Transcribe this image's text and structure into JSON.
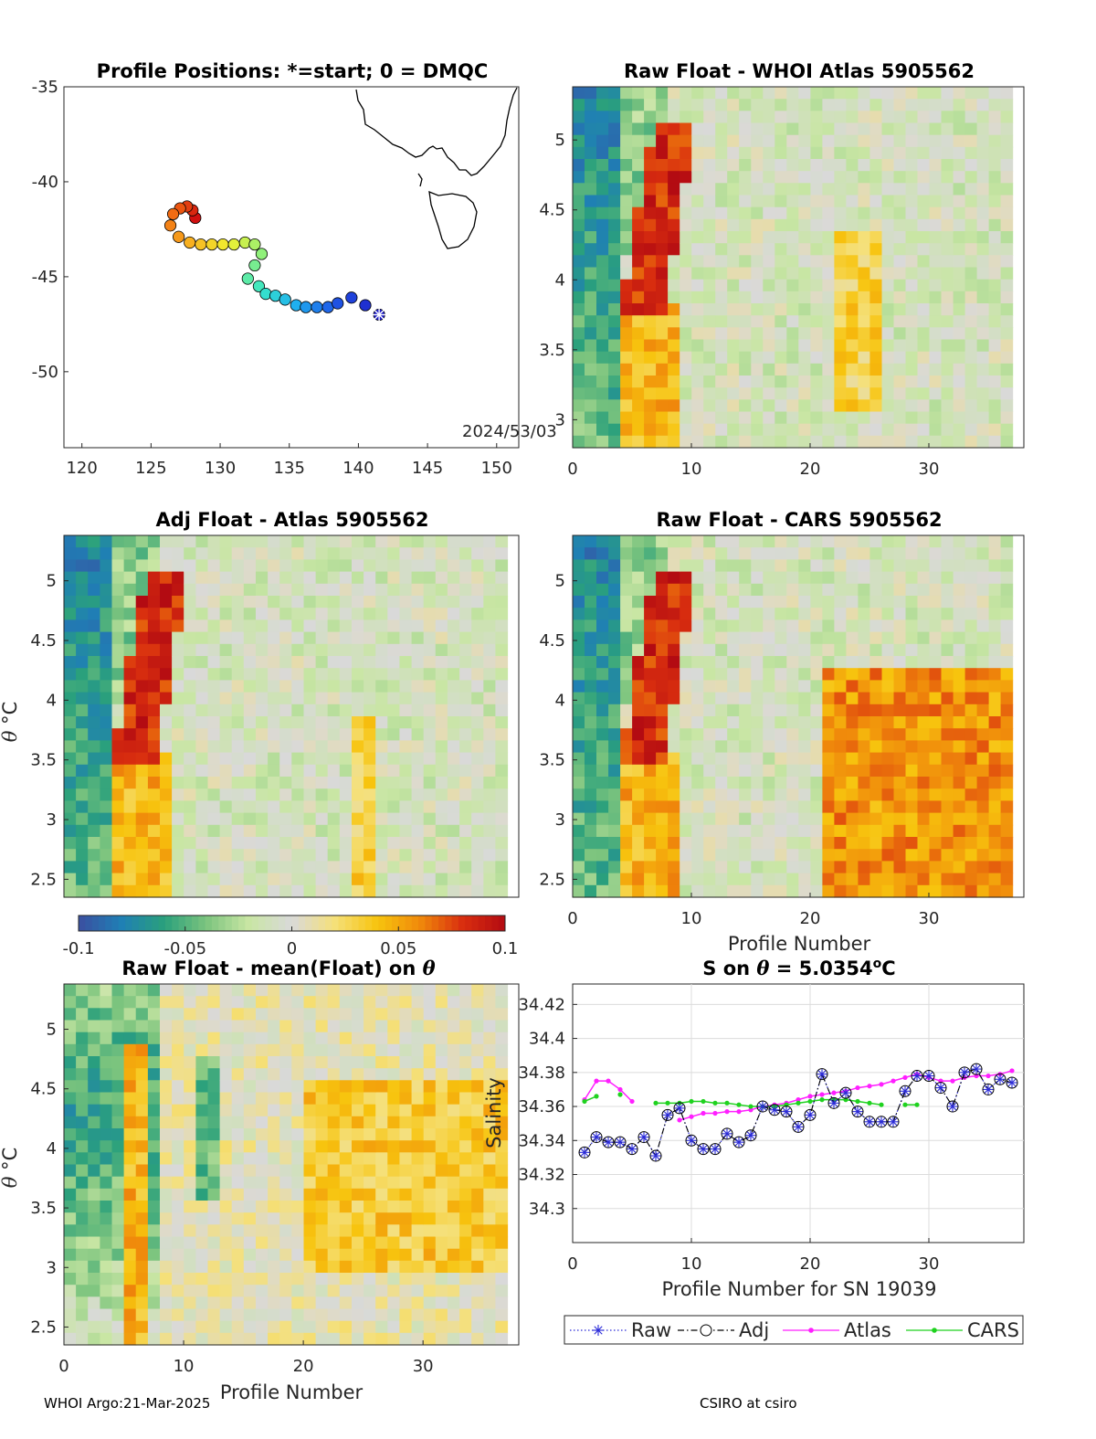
{
  "footer": {
    "left": "WHOI Argo:21-Mar-2025",
    "right": "CSIRO at csiro"
  },
  "colors": {
    "colormap": [
      "#3b4fa0",
      "#1f7fb5",
      "#2aa07c",
      "#7cc47e",
      "#c9e6a4",
      "#d9d9d9",
      "#f5e07a",
      "#f7c40e",
      "#f08a0b",
      "#d92e0f",
      "#b30b12"
    ],
    "raw": "#2b2bd8",
    "adj": "#000000",
    "atlas": "#ff1fff",
    "cars": "#1fd21f"
  },
  "chart_data": [
    {
      "id": "map",
      "type": "scatter",
      "title": "Profile Positions: *=start; 0 = DMQC",
      "xlim": [
        118.7,
        151.6
      ],
      "ylim": [
        -54,
        -35
      ],
      "xticks": [
        120,
        125,
        130,
        135,
        140,
        145,
        150
      ],
      "yticks": [
        -35,
        -40,
        -45,
        -50
      ],
      "annotation": "2024/53/03",
      "points": [
        [
          141.5,
          -47.0
        ],
        [
          140.5,
          -46.5
        ],
        [
          139.5,
          -46.1
        ],
        [
          138.5,
          -46.4
        ],
        [
          137.8,
          -46.6
        ],
        [
          137.0,
          -46.6
        ],
        [
          136.2,
          -46.6
        ],
        [
          135.5,
          -46.5
        ],
        [
          134.7,
          -46.2
        ],
        [
          134.0,
          -46.0
        ],
        [
          133.3,
          -45.9
        ],
        [
          132.8,
          -45.5
        ],
        [
          132.0,
          -45.1
        ],
        [
          132.5,
          -44.4
        ],
        [
          133.0,
          -43.8
        ],
        [
          132.5,
          -43.3
        ],
        [
          131.8,
          -43.2
        ],
        [
          131.0,
          -43.3
        ],
        [
          130.2,
          -43.3
        ],
        [
          129.4,
          -43.3
        ],
        [
          128.6,
          -43.3
        ],
        [
          127.8,
          -43.2
        ],
        [
          127.0,
          -42.9
        ],
        [
          126.4,
          -42.3
        ],
        [
          126.6,
          -41.7
        ],
        [
          127.1,
          -41.4
        ],
        [
          127.6,
          -41.3
        ],
        [
          128.0,
          -41.5
        ],
        [
          128.2,
          -41.9
        ]
      ]
    },
    {
      "id": "p2",
      "type": "heatmap",
      "title": "Raw Float - WHOI Atlas  5905562",
      "xlim": [
        0,
        38
      ],
      "ylim": [
        2.8,
        5.38
      ],
      "xticks": [
        0,
        10,
        20,
        30
      ],
      "yticks": [
        3,
        3.5,
        4,
        4.5,
        5
      ],
      "clim": [
        -0.1,
        0.1
      ]
    },
    {
      "id": "p3",
      "type": "heatmap",
      "title": "Adj Float - Atlas  5905562",
      "xlim": [
        0,
        38
      ],
      "ylim": [
        2.35,
        5.38
      ],
      "xticks": [],
      "yticks": [
        2.5,
        3,
        3.5,
        4,
        4.5,
        5
      ],
      "ylabel": "θ °C",
      "clim": [
        -0.1,
        0.1
      ],
      "colorbar": {
        "ticks": [
          "-0.1",
          "-0.05",
          "0",
          "0.05",
          "0.1"
        ]
      }
    },
    {
      "id": "p4",
      "type": "heatmap",
      "title": "Raw Float - CARS  5905562",
      "xlim": [
        0,
        38
      ],
      "ylim": [
        2.35,
        5.38
      ],
      "xticks": [
        0,
        10,
        20,
        30
      ],
      "yticks": [
        2.5,
        3,
        3.5,
        4,
        4.5,
        5
      ],
      "xlabel": "Profile Number",
      "clim": [
        -0.1,
        0.1
      ]
    },
    {
      "id": "p5",
      "type": "heatmap",
      "title": "Raw Float - mean(Float) on θ",
      "xlim": [
        0,
        38
      ],
      "ylim": [
        2.35,
        5.38
      ],
      "xticks": [
        0,
        10,
        20,
        30
      ],
      "yticks": [
        2.5,
        3,
        3.5,
        4,
        4.5,
        5
      ],
      "xlabel": "Profile Number",
      "ylabel": "θ °C",
      "clim": [
        -0.1,
        0.1
      ]
    },
    {
      "id": "salinity",
      "type": "line",
      "title": "S on θ = 5.0354°C",
      "xlabel": "Profile Number for SN 19039",
      "ylabel": "Salinity",
      "xlim": [
        0,
        38
      ],
      "ylim": [
        34.28,
        34.432
      ],
      "xticks": [
        0,
        10,
        20,
        30
      ],
      "yticks": [
        34.3,
        34.32,
        34.34,
        34.36,
        34.38,
        34.4,
        34.42
      ],
      "legend": [
        "Raw",
        "Adj",
        "Atlas",
        "CARS"
      ],
      "series": [
        {
          "name": "Raw",
          "x": [
            1,
            2,
            3,
            4,
            5,
            6,
            7,
            8,
            9,
            10,
            11,
            12,
            13,
            14,
            15,
            16,
            17,
            18,
            19,
            20,
            21,
            22,
            23,
            24,
            25,
            26,
            27,
            28,
            29,
            30,
            31,
            32,
            33,
            34,
            35,
            36,
            37
          ],
          "values": [
            34.333,
            34.342,
            34.339,
            34.339,
            34.335,
            34.342,
            34.331,
            34.355,
            34.359,
            34.34,
            34.335,
            34.335,
            34.344,
            34.339,
            34.343,
            34.36,
            34.358,
            34.357,
            34.348,
            34.355,
            34.379,
            34.362,
            34.368,
            34.357,
            34.351,
            34.351,
            34.351,
            34.369,
            34.378,
            34.378,
            34.371,
            34.36,
            34.38,
            34.382,
            34.37,
            34.376,
            34.374
          ]
        },
        {
          "name": "Adj",
          "x": [
            1,
            2,
            3,
            4,
            5,
            6,
            7,
            8,
            9,
            10,
            11,
            12,
            13,
            14,
            15,
            16,
            17,
            18,
            19,
            20,
            21,
            22,
            23,
            24,
            25,
            26,
            27,
            28,
            29,
            30,
            31,
            32,
            33,
            34,
            35,
            36,
            37
          ],
          "values": [
            34.333,
            34.342,
            34.339,
            34.339,
            34.335,
            34.342,
            34.331,
            34.355,
            34.359,
            34.34,
            34.335,
            34.335,
            34.344,
            34.339,
            34.343,
            34.36,
            34.358,
            34.357,
            34.348,
            34.355,
            34.379,
            34.362,
            34.368,
            34.357,
            34.351,
            34.351,
            34.351,
            34.369,
            34.378,
            34.378,
            34.371,
            34.36,
            34.38,
            34.382,
            34.37,
            34.376,
            34.374
          ]
        },
        {
          "name": "Atlas",
          "x": [
            1,
            2,
            3,
            4,
            5,
            9,
            10,
            11,
            12,
            13,
            14,
            15,
            16,
            17,
            18,
            19,
            20,
            21,
            22,
            23,
            24,
            25,
            26,
            27,
            28,
            29,
            30,
            31,
            32,
            33,
            34,
            35,
            36,
            37
          ],
          "values": [
            34.364,
            34.375,
            34.375,
            34.37,
            34.363,
            34.352,
            34.354,
            34.356,
            34.356,
            34.357,
            34.357,
            34.358,
            34.36,
            34.361,
            34.362,
            34.364,
            34.366,
            34.367,
            34.368,
            34.369,
            34.371,
            34.372,
            34.373,
            34.375,
            34.377,
            34.379,
            34.377,
            34.375,
            34.375,
            34.377,
            34.378,
            34.378,
            34.379,
            34.381
          ]
        },
        {
          "name": "CARS",
          "x": [
            1,
            2,
            4,
            7,
            8,
            9,
            10,
            11,
            12,
            13,
            14,
            15,
            16,
            17,
            18,
            19,
            20,
            21,
            22,
            23,
            24,
            25,
            26,
            28,
            29
          ],
          "values": [
            34.363,
            34.366,
            34.367,
            34.362,
            34.362,
            34.362,
            34.363,
            34.363,
            34.362,
            34.362,
            34.361,
            34.36,
            34.36,
            34.36,
            34.361,
            34.362,
            34.363,
            34.364,
            34.364,
            34.364,
            34.363,
            34.362,
            34.361,
            34.361,
            34.361
          ]
        }
      ]
    }
  ]
}
